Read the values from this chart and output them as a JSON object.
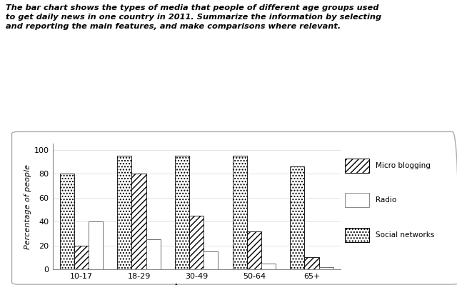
{
  "title": "The bar chart shows the types of media that people of different age groups used\nto get daily news in one country in 2011. Summarize the information by selecting\nand reporting the main features, and make comparisons where relevant.",
  "age_groups": [
    "10-17",
    "18-29",
    "30-49",
    "50-64",
    "65+"
  ],
  "series": {
    "Social networks": [
      80,
      95,
      95,
      95,
      86
    ],
    "Micro blogging": [
      20,
      80,
      45,
      32,
      10
    ],
    "Radio": [
      40,
      25,
      15,
      5,
      2
    ]
  },
  "legend_labels": [
    "Micro blogging",
    "Radio",
    "Social networks"
  ],
  "ylabel": "Percentage of people",
  "xlabel": "Age groups",
  "ylim": [
    0,
    105
  ],
  "yticks": [
    0,
    20,
    40,
    60,
    80,
    100
  ],
  "bar_width": 0.25,
  "background_color": "#ffffff"
}
